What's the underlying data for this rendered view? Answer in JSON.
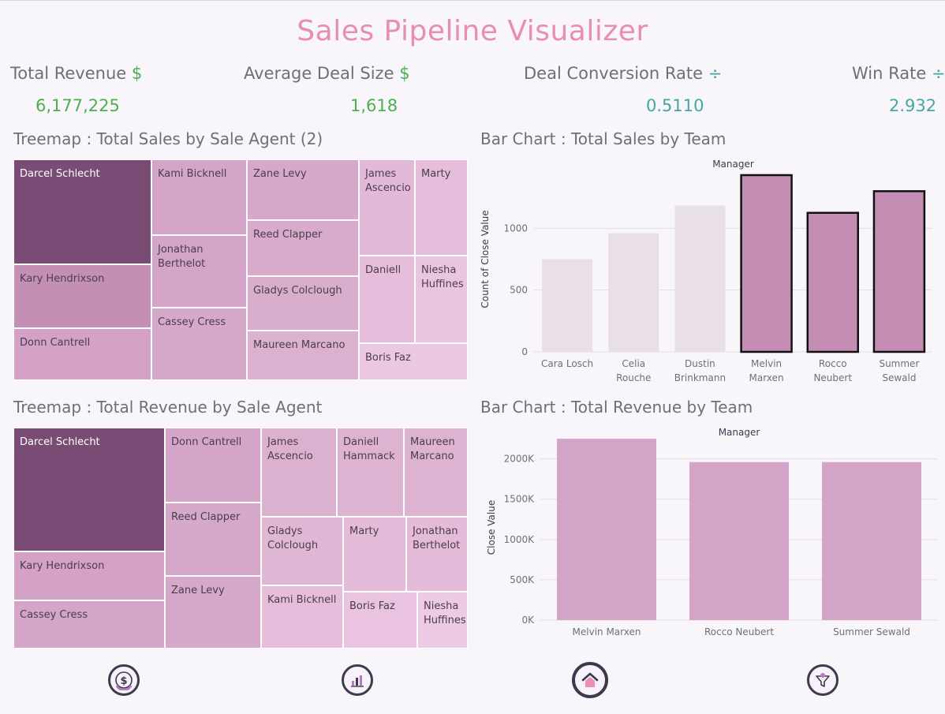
{
  "title": "Sales Pipeline Visualizer",
  "kpis": {
    "total_revenue": {
      "label": "Total Revenue",
      "symbol": "$",
      "value": "6,177,225"
    },
    "avg_deal": {
      "label": "Average Deal Size",
      "symbol": "$",
      "value": "1,618"
    },
    "conversion": {
      "label": "Deal Conversion Rate",
      "symbol": "÷",
      "value": "0.5110"
    },
    "win_rate": {
      "label": "Win Rate",
      "symbol": "÷",
      "value": "2.932"
    }
  },
  "sections": {
    "treemap_sales": "Treemap : Total Sales by Sale Agent (2)",
    "bar_sales": "Bar Chart : Total Sales by Team",
    "treemap_revenue": "Treemap : Total Revenue by Sale Agent",
    "bar_revenue": "Bar Chart : Total Revenue by Team"
  },
  "treemap_sales": {
    "tiles": [
      {
        "label": "Darcel Schlecht",
        "color": "#7a4c75"
      },
      {
        "label": "Kary Hendrixson",
        "color": "#c48fb5"
      },
      {
        "label": "Donn Cantrell",
        "color": "#d3a2c6"
      },
      {
        "label": "Kami Bicknell",
        "color": "#d4a5c8"
      },
      {
        "label": "Jonathan Berthelot",
        "color": "#d4a5c8"
      },
      {
        "label": "Cassey Cress",
        "color": "#d6a8ca"
      },
      {
        "label": "Zane Levy",
        "color": "#d6a8ca"
      },
      {
        "label": "Reed Clapper",
        "color": "#d8abcc"
      },
      {
        "label": "Gladys Colclough",
        "color": "#d9aecd"
      },
      {
        "label": "Maureen Marcano",
        "color": "#dbb1cf"
      },
      {
        "label": "James Ascencio",
        "color": "#e2b9d8"
      },
      {
        "label": "Marty",
        "color": "#e6bddb"
      },
      {
        "label": "Daniell",
        "color": "#e6bddb"
      },
      {
        "label": "Niesha Huffines",
        "color": "#eac5e0"
      },
      {
        "label": "Boris Faz",
        "color": "#ebc8e2"
      }
    ]
  },
  "treemap_revenue": {
    "tiles": [
      {
        "label": "Darcel Schlecht",
        "color": "#7a4c75"
      },
      {
        "label": "Kary Hendrixson",
        "color": "#d3a2c6"
      },
      {
        "label": "Cassey Cress",
        "color": "#d4a5c8"
      },
      {
        "label": "Donn Cantrell",
        "color": "#d4a5c8"
      },
      {
        "label": "Reed Clapper",
        "color": "#d6a8ca"
      },
      {
        "label": "Zane Levy",
        "color": "#d6a8ca"
      },
      {
        "label": "James Ascencio",
        "color": "#dbb1cf"
      },
      {
        "label": "Daniell Hammack",
        "color": "#ddb3d1"
      },
      {
        "label": "Maureen Marcano",
        "color": "#ddb3d1"
      },
      {
        "label": "Gladys Colclough",
        "color": "#e0b7d5"
      },
      {
        "label": "Marty",
        "color": "#e4bbd9"
      },
      {
        "label": "Jonathan Berthelot",
        "color": "#e4bbd9"
      },
      {
        "label": "Kami Bicknell",
        "color": "#e6bddb"
      },
      {
        "label": "Boris Faz",
        "color": "#e9c3df"
      },
      {
        "label": "Niesha Huffines",
        "color": "#eecbe4"
      }
    ]
  },
  "chart_data": [
    {
      "type": "bar",
      "title": "Manager",
      "ylabel": "Count of Close Value",
      "categories": [
        "Cara Losch",
        "Celia Rouche",
        "Dustin Brinkmann",
        "Melvin Marxen",
        "Rocco Neubert",
        "Summer Sewald"
      ],
      "values": [
        750,
        960,
        1185,
        1430,
        1125,
        1300
      ],
      "highlighted": [
        false,
        false,
        false,
        true,
        true,
        true
      ],
      "ticks": [
        0,
        500,
        1000
      ],
      "tick_labels": [
        "0",
        "500",
        "1000"
      ],
      "ylim": [
        0,
        1500
      ],
      "colors": {
        "dim": "#e8dfe7",
        "highlight": "#c38db4"
      }
    },
    {
      "type": "bar",
      "title": "Manager",
      "ylabel": "Close Value",
      "categories": [
        "Melvin Marxen",
        "Rocco Neubert",
        "Summer Sewald"
      ],
      "values": [
        2250000,
        1960000,
        1960000
      ],
      "ticks": [
        0,
        500000,
        1000000,
        1500000,
        2000000
      ],
      "tick_labels": [
        "0K",
        "500K",
        "1000K",
        "1500K",
        "2000K"
      ],
      "ylim": [
        0,
        2300000
      ],
      "colors": {
        "bar": "#d4a5c8"
      }
    }
  ],
  "nav": [
    {
      "name": "revenue-nav-icon"
    },
    {
      "name": "analytics-nav-icon"
    },
    {
      "name": "home-nav-icon"
    },
    {
      "name": "funnel-nav-icon"
    }
  ]
}
